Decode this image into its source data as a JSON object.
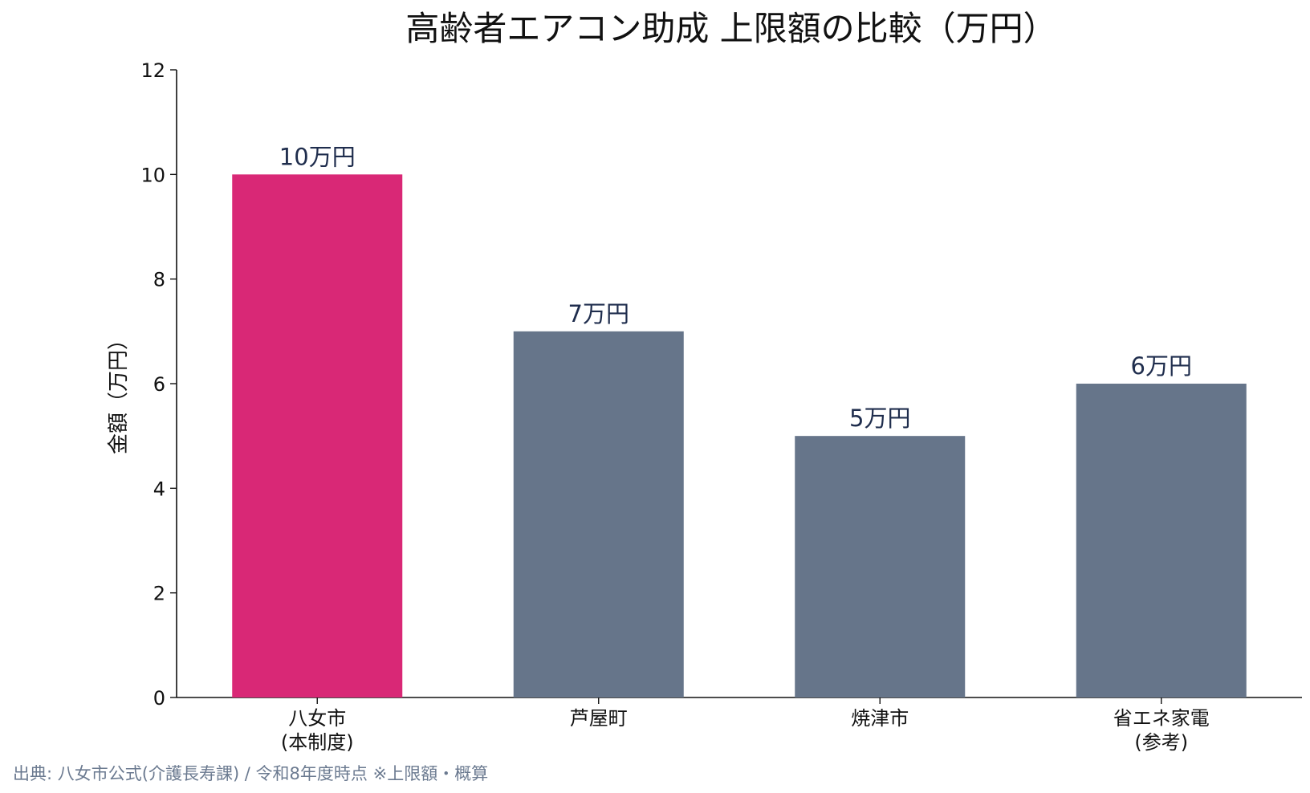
{
  "chart_data": {
    "type": "bar",
    "title": "高齢者エアコン助成 上限額の比較（万円）",
    "ylabel": "金額（万円）",
    "xlabel": "",
    "ylim": [
      0,
      12
    ],
    "yticks": [
      "0",
      "2",
      "4",
      "6",
      "8",
      "10",
      "12"
    ],
    "categories": [
      [
        "八女市",
        "(本制度)"
      ],
      [
        "芦屋町"
      ],
      [
        "焼津市"
      ],
      [
        "省エネ家電",
        "(参考)"
      ]
    ],
    "values": [
      10,
      7,
      5,
      6
    ],
    "data_labels": [
      "10万円",
      "7万円",
      "5万円",
      "6万円"
    ],
    "colors": [
      "#d92876",
      "#66758a",
      "#66758a",
      "#66758a"
    ],
    "grid": false,
    "legend": "none"
  },
  "source_note": "出典: 八女市公式(介護長寿課) / 令和8年度時点 ※上限額・概算"
}
